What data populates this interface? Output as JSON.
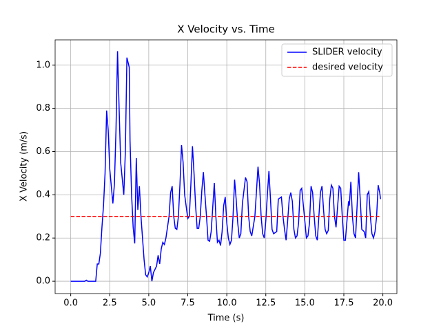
{
  "chart_data": {
    "type": "line",
    "title": "X Velocity vs. Time",
    "xlabel": "Time (s)",
    "ylabel": "X Velocity (m/s)",
    "xlim": [
      -1.0,
      20.9
    ],
    "ylim": [
      -0.057,
      1.117
    ],
    "xticks": [
      {
        "value": 0,
        "label": "0.0"
      },
      2.5,
      {
        "value": 5,
        "label": "5.0"
      },
      7.5,
      {
        "value": 10,
        "label": "10.0"
      },
      12.5,
      {
        "value": 15,
        "label": "15.0"
      },
      17.5,
      {
        "value": 20,
        "label": "20.0"
      }
    ],
    "yticks": [
      {
        "value": 0,
        "label": "0.0"
      },
      0.2,
      0.4,
      0.6,
      0.8,
      {
        "value": 1,
        "label": "1.0"
      }
    ],
    "grid": true,
    "legend": "upper right",
    "series": [
      {
        "name": "SLIDER velocity",
        "color": "#0000ff",
        "style": "solid",
        "x": [
          0,
          0.9,
          1.0,
          1.1,
          1.6,
          1.7,
          1.8,
          1.9,
          2.0,
          2.1,
          2.2,
          2.3,
          2.4,
          2.5,
          2.7,
          2.8,
          2.9,
          3.0,
          3.1,
          3.2,
          3.4,
          3.5,
          3.6,
          3.75,
          3.8,
          3.9,
          4.0,
          4.1,
          4.2,
          4.3,
          4.4,
          4.5,
          4.6,
          4.7,
          4.8,
          4.9,
          5.0,
          5.1,
          5.2,
          5.3,
          5.5,
          5.6,
          5.7,
          5.8,
          5.9,
          6.0,
          6.1,
          6.3,
          6.4,
          6.5,
          6.6,
          6.7,
          6.8,
          6.9,
          7.0,
          7.1,
          7.2,
          7.3,
          7.5,
          7.6,
          7.7,
          7.8,
          7.9,
          8.0,
          8.1,
          8.2,
          8.3,
          8.4,
          8.5,
          8.6,
          8.7,
          8.8,
          8.9,
          9.0,
          9.2,
          9.3,
          9.4,
          9.5,
          9.6,
          9.7,
          9.8,
          9.9,
          10.0,
          10.1,
          10.2,
          10.3,
          10.4,
          10.5,
          10.6,
          10.7,
          10.8,
          10.9,
          11.0,
          11.2,
          11.3,
          11.4,
          11.5,
          11.6,
          11.8,
          12.0,
          12.1,
          12.2,
          12.3,
          12.4,
          12.5,
          12.6,
          12.7,
          12.8,
          12.9,
          13.0,
          13.2,
          13.3,
          13.5,
          13.6,
          13.7,
          13.8,
          13.9,
          14.0,
          14.1,
          14.2,
          14.3,
          14.4,
          14.5,
          14.6,
          14.7,
          14.8,
          15.0,
          15.1,
          15.2,
          15.3,
          15.4,
          15.5,
          15.6,
          15.7,
          15.8,
          15.9,
          16.0,
          16.1,
          16.2,
          16.3,
          16.4,
          16.5,
          16.6,
          16.7,
          16.8,
          16.9,
          17.0,
          17.2,
          17.3,
          17.4,
          17.5,
          17.6,
          17.7,
          17.8,
          17.85,
          17.95,
          18.05,
          18.15,
          18.25,
          18.35,
          18.45,
          18.55,
          18.65,
          18.8,
          18.9,
          19.0,
          19.1,
          19.2,
          19.3,
          19.4,
          19.5,
          19.6,
          19.7,
          19.8,
          19.85
        ],
        "values": [
          0,
          0,
          0.005,
          0,
          0,
          0.08,
          0.08,
          0.13,
          0.25,
          0.35,
          0.5,
          0.79,
          0.7,
          0.52,
          0.36,
          0.45,
          0.7,
          1.065,
          0.8,
          0.55,
          0.4,
          0.6,
          1.035,
          0.99,
          0.65,
          0.4,
          0.25,
          0.175,
          0.57,
          0.33,
          0.44,
          0.3,
          0.2,
          0.1,
          0.03,
          0.02,
          0.04,
          0.07,
          0.0,
          0.04,
          0.07,
          0.12,
          0.08,
          0.15,
          0.18,
          0.17,
          0.2,
          0.3,
          0.41,
          0.44,
          0.3,
          0.245,
          0.24,
          0.3,
          0.45,
          0.63,
          0.55,
          0.4,
          0.29,
          0.3,
          0.45,
          0.625,
          0.5,
          0.35,
          0.245,
          0.245,
          0.3,
          0.42,
          0.505,
          0.4,
          0.3,
          0.19,
          0.185,
          0.23,
          0.455,
          0.3,
          0.18,
          0.19,
          0.165,
          0.23,
          0.35,
          0.39,
          0.27,
          0.2,
          0.17,
          0.19,
          0.3,
          0.47,
          0.38,
          0.27,
          0.2,
          0.22,
          0.36,
          0.48,
          0.46,
          0.3,
          0.23,
          0.21,
          0.3,
          0.53,
          0.45,
          0.3,
          0.22,
          0.2,
          0.28,
          0.4,
          0.51,
          0.38,
          0.24,
          0.22,
          0.23,
          0.38,
          0.39,
          0.3,
          0.24,
          0.19,
          0.28,
          0.38,
          0.41,
          0.37,
          0.24,
          0.2,
          0.21,
          0.27,
          0.42,
          0.43,
          0.28,
          0.2,
          0.21,
          0.27,
          0.44,
          0.41,
          0.3,
          0.21,
          0.19,
          0.3,
          0.41,
          0.44,
          0.33,
          0.24,
          0.22,
          0.235,
          0.38,
          0.445,
          0.43,
          0.3,
          0.25,
          0.44,
          0.43,
          0.3,
          0.19,
          0.19,
          0.28,
          0.37,
          0.35,
          0.46,
          0.3,
          0.22,
          0.2,
          0.35,
          0.505,
          0.38,
          0.24,
          0.23,
          0.2,
          0.4,
          0.415,
          0.3,
          0.22,
          0.2,
          0.23,
          0.3,
          0.445,
          0.41,
          0.38
        ]
      },
      {
        "name": "desired velocity",
        "color": "#ff0000",
        "style": "dashed",
        "x": [
          0,
          19.85
        ],
        "values": [
          0.3,
          0.3
        ]
      }
    ]
  }
}
